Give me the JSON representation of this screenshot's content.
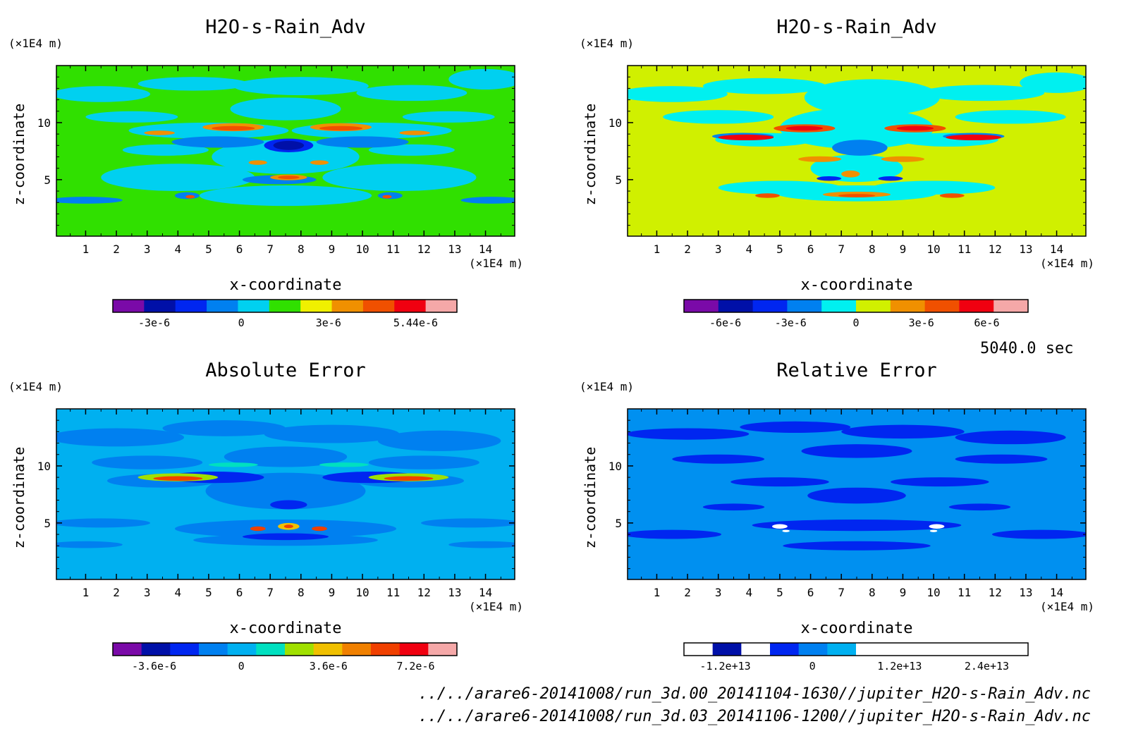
{
  "time_label": "5040.0 sec",
  "file_paths": [
    "../../arare6-20141008/run_3d.00_20141104-1630//jupiter_H2O-s-Rain_Adv.nc",
    "../../arare6-20141008/run_3d.03_20141106-1200//jupiter_H2O-s-Rain_Adv.nc"
  ],
  "chart_data": [
    {
      "type": "heatmap",
      "title": "H2O-s-Rain_Adv",
      "xlabel": "x-coordinate",
      "ylabel": "z-coordinate",
      "x_unit": "(×1E4 m)",
      "y_unit": "(×1E4 m)",
      "xlim": [
        0.05,
        14.95
      ],
      "ylim": [
        0.05,
        15
      ],
      "xticks": [
        "1",
        "2",
        "3",
        "4",
        "5",
        "6",
        "7",
        "8",
        "9",
        "10",
        "11",
        "12",
        "13",
        "14"
      ],
      "yticks": [
        "5",
        "10"
      ],
      "background_color": "#30e000",
      "colorbar": {
        "colors": [
          "#7a0aa8",
          "#0010a8",
          "#0026f0",
          "#0080f0",
          "#00d0f0",
          "#30e000",
          "#f0f000",
          "#f09000",
          "#f05000",
          "#f00010",
          "#f5a8a8"
        ],
        "labels": [
          "-3e-6",
          "0",
          "3e-6",
          "5.44e-6"
        ]
      }
    },
    {
      "type": "heatmap",
      "title": "H2O-s-Rain_Adv",
      "xlabel": "x-coordinate",
      "ylabel": "z-coordinate",
      "x_unit": "(×1E4 m)",
      "y_unit": "(×1E4 m)",
      "xlim": [
        0.05,
        14.95
      ],
      "ylim": [
        0.05,
        15
      ],
      "xticks": [
        "1",
        "2",
        "3",
        "4",
        "5",
        "6",
        "7",
        "8",
        "9",
        "10",
        "11",
        "12",
        "13",
        "14"
      ],
      "yticks": [
        "5",
        "10"
      ],
      "background_color": "#d0f000",
      "colorbar": {
        "colors": [
          "#7a0aa8",
          "#0010a8",
          "#0026f0",
          "#0080f0",
          "#00f0f0",
          "#d0f000",
          "#f09000",
          "#f05000",
          "#f00010",
          "#f5a8a8"
        ],
        "labels": [
          "-6e-6",
          "-3e-6",
          "0",
          "3e-6",
          "6e-6"
        ]
      }
    },
    {
      "type": "heatmap",
      "title": "Absolute Error",
      "xlabel": "x-coordinate",
      "ylabel": "z-coordinate",
      "x_unit": "(×1E4 m)",
      "y_unit": "(×1E4 m)",
      "xlim": [
        0.05,
        14.95
      ],
      "ylim": [
        0.05,
        15
      ],
      "xticks": [
        "1",
        "2",
        "3",
        "4",
        "5",
        "6",
        "7",
        "8",
        "9",
        "10",
        "11",
        "12",
        "13",
        "14"
      ],
      "yticks": [
        "5",
        "10"
      ],
      "background_color": "#00b0f0",
      "colorbar": {
        "colors": [
          "#7a0aa8",
          "#0010a8",
          "#0026f0",
          "#0080f0",
          "#00b0f0",
          "#00e0c0",
          "#a0e000",
          "#f0c000",
          "#f08000",
          "#f04000",
          "#f00010",
          "#f5a8a8"
        ],
        "labels": [
          "-3.6e-6",
          "0",
          "3.6e-6",
          "7.2e-6"
        ]
      }
    },
    {
      "type": "heatmap",
      "title": "Relative Error",
      "xlabel": "x-coordinate",
      "ylabel": "z-coordinate",
      "x_unit": "(×1E4 m)",
      "y_unit": "(×1E4 m)",
      "xlim": [
        0.05,
        14.95
      ],
      "ylim": [
        0.05,
        15
      ],
      "xticks": [
        "1",
        "2",
        "3",
        "4",
        "5",
        "6",
        "7",
        "8",
        "9",
        "10",
        "11",
        "12",
        "13",
        "14"
      ],
      "yticks": [
        "5",
        "10"
      ],
      "background_color": "#0090f0",
      "colorbar": {
        "colors": [
          "#ffffff",
          "#0010a8",
          "#ffffff",
          "#0026f0",
          "#0080f0",
          "#00b0f0",
          "#ffffff",
          "#ffffff",
          "#ffffff",
          "#ffffff",
          "#ffffff",
          "#ffffff"
        ],
        "labels": [
          "-1.2e+13",
          "0",
          "1.2e+13",
          "2.4e+13"
        ]
      }
    }
  ]
}
